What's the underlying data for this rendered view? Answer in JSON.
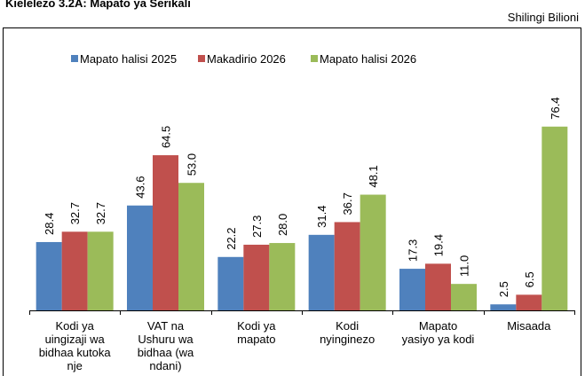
{
  "chart_data": {
    "type": "bar",
    "title": "Kielelezo 3.2A: Mapato ya Serikali",
    "subtitle": "Shilingi Bilioni",
    "categories": [
      "Kodi ya uingizaji wa bidhaa kutoka nje",
      "VAT na Ushuru wa bidhaa (wa ndani)",
      "Kodi ya mapato",
      "Kodi nyinginezo",
      "Mapato yasiyo ya kodi",
      "Misaada"
    ],
    "series": [
      {
        "name": "Mapato halisi 2025",
        "color": "#4f81bd",
        "values": [
          28.4,
          43.6,
          22.2,
          31.4,
          17.3,
          2.5
        ],
        "value_labels": [
          "28.4",
          "43.6",
          "22.2",
          "31.4",
          "17.3",
          "2.5"
        ]
      },
      {
        "name": "Makadirio 2026",
        "color": "#c0504d",
        "values": [
          32.7,
          64.5,
          27.3,
          36.7,
          19.4,
          6.5
        ],
        "value_labels": [
          "32.7",
          "64.5",
          "27.3",
          "36.7",
          "19.4",
          "6.5"
        ]
      },
      {
        "name": "Mapato halisi 2026",
        "color": "#9bbb59",
        "values": [
          32.7,
          53.0,
          28.0,
          48.1,
          11.0,
          76.4
        ],
        "value_labels": [
          "32.7",
          "53.0",
          "28.0",
          "48.1",
          "11.0",
          "76.4"
        ]
      }
    ],
    "ylim": [
      0,
      80
    ]
  }
}
